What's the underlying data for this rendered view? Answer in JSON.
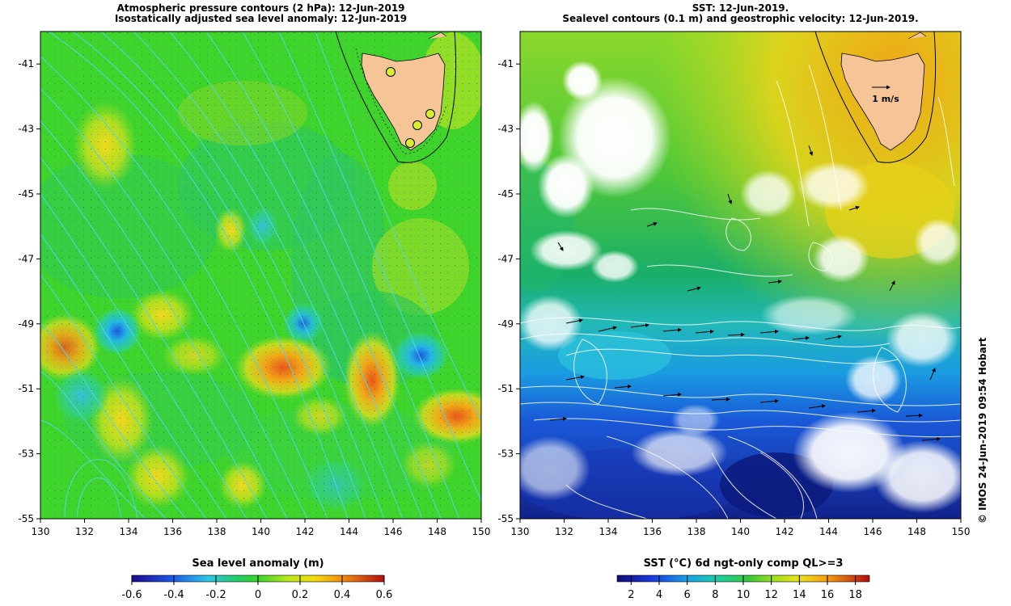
{
  "left_panel": {
    "title_line1": "Atmospheric pressure contours (2 hPa): 12-Jun-2019",
    "title_line2": "Isostatically adjusted sea level anomaly: 12-Jun-2019",
    "colorbar_title": "Sea level anomaly (m)",
    "colorbar_ticks": [
      "-0.6",
      "-0.4",
      "-0.2",
      "0",
      "0.2",
      "0.4",
      "0.6"
    ]
  },
  "right_panel": {
    "title_line1": "SST: 12-Jun-2019.",
    "title_line2": "Sealevel contours (0.1 m) and geostrophic velocity: 12-Jun-2019.",
    "scale_arrow_label": "1 m/s",
    "colorbar_title": "SST (°C) 6d ngt-only comp QL>=3",
    "colorbar_ticks": [
      "2",
      "4",
      "6",
      "8",
      "10",
      "12",
      "14",
      "16",
      "18"
    ]
  },
  "lat_ticks": [
    "-41",
    "-43",
    "-45",
    "-47",
    "-49",
    "-51",
    "-53",
    "-55"
  ],
  "lon_ticks": [
    "130",
    "132",
    "134",
    "136",
    "138",
    "140",
    "142",
    "144",
    "146",
    "148",
    "150"
  ],
  "credit": "© IMOS 24-Jun-2019 09:54 Hobart",
  "colors": {
    "land": "#f5c597",
    "pressure_contour": "#52d6e8",
    "sst_contour": "#ffffff"
  }
}
